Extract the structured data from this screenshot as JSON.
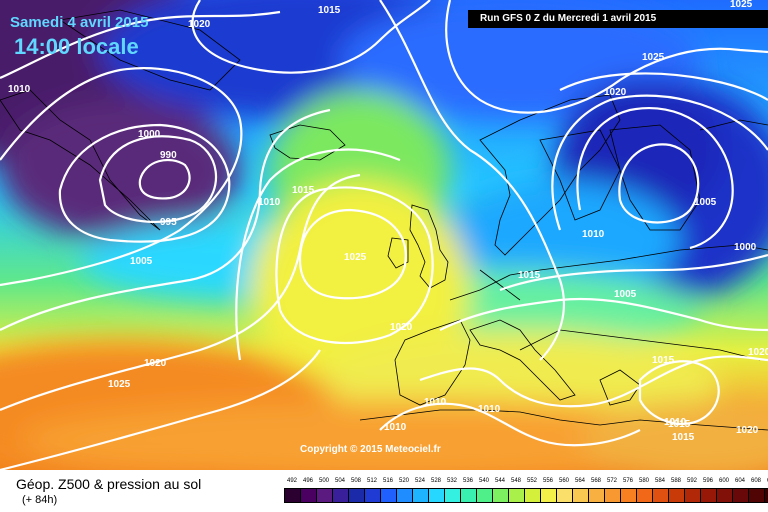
{
  "header": {
    "date": "Samedi 4 avril 2015",
    "time": "14:00 locale",
    "run_info": "Run GFS 0 Z du Mercredi 1 avril 2015"
  },
  "map": {
    "copyright": "Copyright © 2015 Meteociel.fr",
    "isobar_labels": [
      "1015",
      "1020",
      "1025",
      "1010",
      "1020",
      "1000",
      "990",
      "995",
      "1005",
      "1010",
      "1015",
      "1025",
      "1020",
      "1005",
      "1010",
      "1015",
      "1005",
      "1000",
      "1025",
      "1020",
      "1010",
      "1010",
      "1010",
      "1010",
      "1015",
      "1015",
      "1015",
      "1020",
      "1025",
      "1020"
    ],
    "line_color": "#ffffff"
  },
  "footer": {
    "title": "Géop. Z500 & pression au sol",
    "forecast_hour": "(+ 84h)"
  },
  "legend": {
    "values": [
      "492",
      "496",
      "500",
      "504",
      "508",
      "512",
      "516",
      "520",
      "524",
      "528",
      "532",
      "536",
      "540",
      "544",
      "548",
      "552",
      "556",
      "560",
      "564",
      "568",
      "572",
      "576",
      "580",
      "584",
      "588",
      "592",
      "596",
      "600",
      "604",
      "608",
      "612"
    ],
    "colors": [
      "#2b0030",
      "#4a0060",
      "#5a1a80",
      "#3a1f9a",
      "#1b2aa8",
      "#1f3bd4",
      "#2060ff",
      "#1f8cff",
      "#1fb4ff",
      "#26d8ff",
      "#33f0e0",
      "#3af0b0",
      "#4ff08a",
      "#7cf060",
      "#aaf04a",
      "#d4f03a",
      "#f4f04a",
      "#fae06a",
      "#f8c850",
      "#f8b040",
      "#f89830",
      "#f88020",
      "#f06818",
      "#e05010",
      "#c83a08",
      "#b02808",
      "#981808",
      "#801008",
      "#680808",
      "#500404",
      "#380000"
    ]
  }
}
